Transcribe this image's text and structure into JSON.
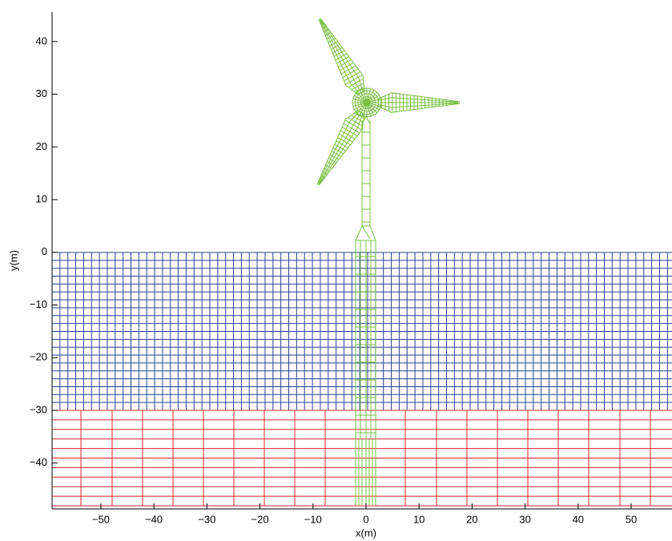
{
  "chart_data": {
    "type": "mesh",
    "xlabel": "x(m)",
    "ylabel": "y(m)",
    "xlim": [
      -59.2,
      57.7
    ],
    "ylim": [
      -48.7,
      45.6
    ],
    "xticks": [
      {
        "value": -50,
        "label": "−50"
      },
      {
        "value": -40,
        "label": "−40"
      },
      {
        "value": -30,
        "label": "−30"
      },
      {
        "value": -20,
        "label": "−20"
      },
      {
        "value": -10,
        "label": "−10"
      },
      0,
      10,
      20,
      30,
      40,
      50
    ],
    "yticks": [
      {
        "value": -40,
        "label": "−40"
      },
      {
        "value": -30,
        "label": "−30"
      },
      {
        "value": -20,
        "label": "−20"
      },
      {
        "value": -10,
        "label": "−10"
      },
      0,
      10,
      20,
      30,
      40
    ]
  }
}
